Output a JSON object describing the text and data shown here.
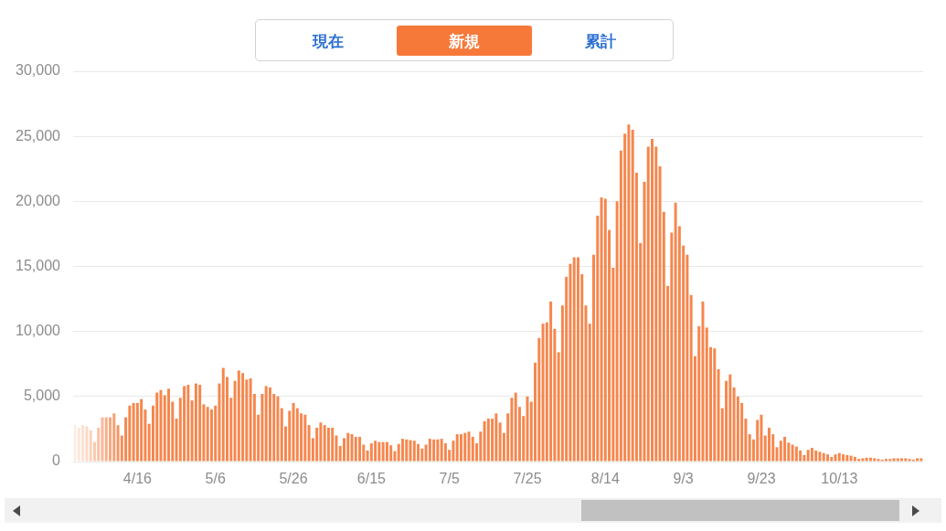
{
  "chart_data": {
    "type": "bar",
    "annotations": [
      "現在",
      "新規",
      "累計"
    ],
    "categories": [
      null,
      null,
      null,
      null,
      null,
      null,
      null,
      null,
      null,
      null,
      null,
      null,
      null,
      null,
      null,
      null,
      "4/16",
      null,
      null,
      null,
      null,
      null,
      null,
      null,
      null,
      null,
      null,
      null,
      null,
      null,
      null,
      null,
      null,
      null,
      null,
      null,
      "5/6",
      null,
      null,
      null,
      null,
      null,
      null,
      null,
      null,
      null,
      null,
      null,
      null,
      null,
      null,
      null,
      null,
      null,
      null,
      null,
      "5/26",
      null,
      null,
      null,
      null,
      null,
      null,
      null,
      null,
      null,
      null,
      null,
      null,
      null,
      null,
      null,
      null,
      null,
      null,
      null,
      "6/15",
      null,
      null,
      null,
      null,
      null,
      null,
      null,
      null,
      null,
      null,
      null,
      null,
      null,
      null,
      null,
      null,
      null,
      null,
      null,
      "7/5",
      null,
      null,
      null,
      null,
      null,
      null,
      null,
      null,
      null,
      null,
      null,
      null,
      null,
      null,
      null,
      null,
      null,
      null,
      null,
      "7/25",
      null,
      null,
      null,
      null,
      null,
      null,
      null,
      null,
      null,
      null,
      null,
      null,
      null,
      null,
      null,
      null,
      null,
      null,
      null,
      "8/14",
      null,
      null,
      null,
      null,
      null,
      null,
      null,
      null,
      null,
      null,
      null,
      null,
      null,
      null,
      null,
      null,
      null,
      null,
      null,
      "9/3",
      null,
      null,
      null,
      null,
      null,
      null,
      null,
      null,
      null,
      null,
      null,
      null,
      null,
      null,
      null,
      null,
      null,
      null,
      null,
      "9/23",
      null,
      null,
      null,
      null,
      null,
      null,
      null,
      null,
      null,
      null,
      null,
      null,
      null,
      null,
      null,
      null,
      null,
      null,
      null,
      "10/13",
      null,
      null,
      null,
      null,
      null,
      null,
      null,
      null,
      null,
      null,
      null,
      null,
      null,
      null,
      null,
      null,
      null,
      null,
      null,
      null,
      null
    ],
    "values": [
      2800,
      2600,
      2800,
      2700,
      2400,
      1500,
      2600,
      3400,
      3400,
      3400,
      3700,
      2800,
      2000,
      3400,
      4300,
      4500,
      4500,
      4800,
      4000,
      2900,
      4300,
      5300,
      5500,
      5100,
      5600,
      4600,
      3300,
      4900,
      5800,
      5900,
      4700,
      6000,
      5900,
      4400,
      4200,
      4000,
      4300,
      6000,
      7200,
      6500,
      4900,
      6200,
      7000,
      6800,
      6300,
      6400,
      5200,
      3600,
      5200,
      5800,
      5700,
      5200,
      5000,
      4100,
      2700,
      3900,
      4500,
      4100,
      3700,
      3600,
      2800,
      1800,
      2600,
      3000,
      2800,
      2600,
      2600,
      2000,
      1200,
      1800,
      2200,
      2100,
      1900,
      1900,
      1300,
      850,
      1400,
      1600,
      1500,
      1500,
      1500,
      1250,
      800,
      1350,
      1750,
      1700,
      1650,
      1600,
      1350,
      1000,
      1300,
      1750,
      1700,
      1700,
      1750,
      1400,
      900,
      1600,
      2100,
      2100,
      2200,
      2300,
      1900,
      1400,
      2300,
      3100,
      3300,
      3300,
      3700,
      3000,
      2200,
      3700,
      4900,
      5300,
      4200,
      3500,
      5000,
      4600,
      7600,
      9500,
      10600,
      10700,
      12300,
      10200,
      8400,
      12000,
      14200,
      15200,
      15700,
      15700,
      14400,
      12000,
      10600,
      15900,
      18900,
      20300,
      20200,
      17800,
      14900,
      20000,
      23900,
      25200,
      25900,
      25500,
      22200,
      16800,
      21500,
      24200,
      24800,
      24200,
      22700,
      19200,
      13500,
      17600,
      19900,
      18100,
      16600,
      15900,
      12800,
      8100,
      10400,
      12300,
      10300,
      8800,
      8700,
      7100,
      4100,
      6200,
      6700,
      5700,
      5000,
      4500,
      3300,
      2100,
      1700,
      3200,
      3600,
      2000,
      2600,
      2100,
      1100,
      1600,
      1900,
      1450,
      1300,
      1150,
      850,
      500,
      900,
      1050,
      850,
      750,
      650,
      550,
      350,
      550,
      650,
      550,
      500,
      450,
      350,
      200,
      250,
      300,
      300,
      250,
      200,
      150,
      200,
      200,
      250,
      250,
      250,
      250,
      200,
      150,
      250,
      250
    ],
    "colors": [
      "#feede4",
      "#fde7dc",
      "#fce0d1",
      "#fcd9c6",
      "#fbd1bc",
      "#fac9af",
      "#fac1a3",
      "#f9b897",
      "#f8b08a",
      "#f8a77e",
      "#f79f71",
      "#f69765",
      "#f68e59",
      "#f5874e",
      "#f5874e",
      "#f5874e",
      "#f5874e",
      "#f5874e",
      "#f5874e",
      "#f5874e",
      "#f5874e",
      "#f5874e",
      "#f5874e",
      "#f5874e",
      "#f5874e",
      "#f5874e",
      "#f5874e",
      "#f5874e",
      "#f5874e",
      "#f5874e",
      "#f5874e",
      "#f5874e",
      "#f5874e",
      "#f5874e",
      "#f5874e",
      "#f5874e",
      "#f5874e",
      "#f5874e",
      "#f5874e",
      "#f5874e",
      "#f5874e",
      "#f5874e",
      "#f5874e",
      "#f5874e",
      "#f5874e",
      "#f5874e",
      "#f5874e",
      "#f5874e",
      "#f5874e",
      "#f5874e",
      "#f5874e",
      "#f5874e",
      "#f5874e",
      "#f5874e",
      "#f5874e",
      "#f5874e",
      "#f5874e",
      "#f5874e",
      "#f5874e",
      "#f5874e",
      "#f5874e",
      "#f5874e",
      "#f5874e",
      "#f5874e",
      "#f5874e",
      "#f5874e",
      "#f5874e",
      "#f5874e",
      "#f5874e",
      "#f5874e",
      "#f5874e",
      "#f5874e",
      "#f5874e",
      "#f5874e",
      "#f5874e",
      "#f5874e",
      "#f5874e",
      "#f5874e",
      "#f5874e",
      "#f5874e",
      "#f5874e",
      "#f5874e",
      "#f5874e",
      "#f5874e",
      "#f5874e",
      "#f5874e",
      "#f5874e",
      "#f5874e",
      "#f5874e",
      "#f5874e",
      "#f5874e",
      "#f5874e",
      "#f5874e",
      "#f5874e",
      "#f5874e",
      "#f5874e",
      "#f5874e",
      "#f5874e",
      "#f5874e",
      "#f5874e",
      "#f5874e",
      "#f5874e",
      "#f5874e",
      "#f5874e",
      "#f5874e",
      "#f5874e",
      "#f5874e",
      "#f5874e",
      "#f5874e",
      "#f5874e",
      "#f5874e",
      "#f5874e",
      "#f5874e",
      "#f5874e",
      "#f5874e",
      "#f5874e",
      "#f5874e",
      "#f5874e",
      "#f5874e",
      "#f5874e",
      "#f5874e",
      "#f5874e",
      "#f5874e",
      "#f5874e",
      "#f5874e",
      "#f5874e",
      "#f5874e",
      "#f5874e",
      "#f5874e",
      "#f5874e",
      "#f5874e",
      "#f5874e",
      "#f5874e",
      "#f5874e",
      "#f5874e",
      "#f5874e",
      "#f5874e",
      "#f5874e",
      "#f5874e",
      "#f5874e",
      "#f5874e",
      "#f5874e",
      "#f5874e",
      "#f5874e",
      "#f5874e",
      "#f5874e",
      "#f5874e",
      "#f5874e",
      "#f5874e",
      "#f5874e",
      "#f5874e",
      "#f5874e",
      "#f5874e",
      "#f5874e",
      "#f5874e",
      "#f5874e",
      "#f5874e",
      "#f5874e",
      "#f5874e",
      "#f5874e",
      "#f5874e",
      "#f5874e",
      "#f5874e",
      "#f5874e",
      "#f5874e",
      "#f5874e",
      "#f5874e",
      "#f5874e",
      "#f5874e",
      "#f5874e",
      "#f5874e",
      "#f5874e",
      "#f5874e",
      "#f5874e",
      "#f5874e",
      "#f5874e",
      "#f5874e",
      "#f5874e",
      "#f5874e",
      "#f5874e",
      "#f5874e",
      "#f5874e",
      "#f5874e",
      "#f5874e",
      "#f5874e",
      "#f5874e",
      "#f5874e",
      "#f5874e",
      "#f5874e",
      "#f5874e",
      "#f5874e",
      "#f5874e",
      "#f5874e",
      "#f5874e",
      "#f5874e",
      "#f5874e",
      "#f5874e",
      "#f5874e",
      "#f5874e",
      "#f5874e",
      "#f5874e",
      "#f5874e",
      "#f5874e",
      "#f5874e",
      "#f5874e",
      "#f5874e",
      "#f5874e",
      "#f5874e",
      "#f5874e",
      "#f5874e",
      "#f5874e",
      "#f5874e",
      "#f5874e",
      "#f5874e",
      "#f5874e",
      "#f5874e",
      "#f5874e",
      "#f5874e"
    ],
    "ylim": [
      0,
      30000
    ],
    "yticks": [
      0,
      {
        "value": 5000,
        "label": "5,000"
      },
      {
        "value": 10000,
        "label": "10,000"
      },
      {
        "value": 15000,
        "label": "15,000"
      },
      {
        "value": 20000,
        "label": "20,000"
      },
      {
        "value": 25000,
        "label": "25,000"
      },
      {
        "value": 30000,
        "label": "30,000"
      }
    ],
    "grid": "y"
  }
}
